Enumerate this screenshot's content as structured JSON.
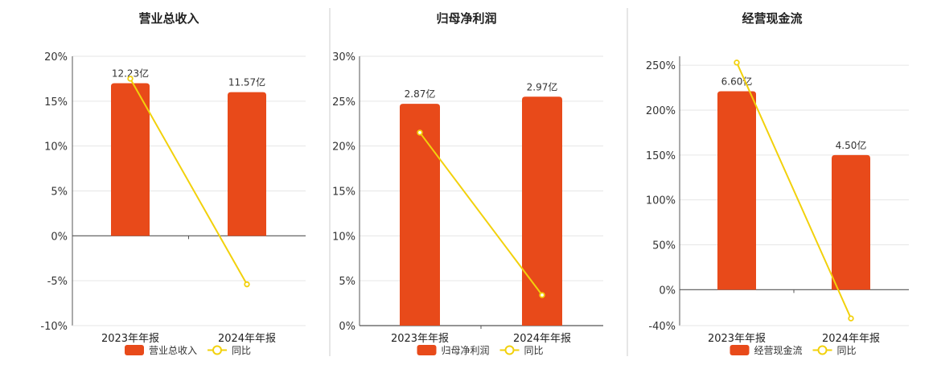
{
  "colors": {
    "bar": "#E84A1A",
    "line": "#F2D10C",
    "grid": "#e6e6e6",
    "axis": "#555555",
    "divider": "#cccccc"
  },
  "chart_data": [
    {
      "type": "bar",
      "title": "营业总收入",
      "categories": [
        "2023年年报",
        "2024年年报"
      ],
      "bar_labels": [
        "12.23亿",
        "11.57亿"
      ],
      "bar_values": [
        17,
        16
      ],
      "yoy_values": [
        17.5,
        -5.4
      ],
      "ylim": [
        -10,
        20
      ],
      "yticks": [
        "20%",
        "15%",
        "10%",
        "5%",
        "0%",
        "-5%",
        "-10%"
      ],
      "ytick_values": [
        20,
        15,
        10,
        5,
        0,
        -5,
        -10
      ],
      "legend": [
        "营业总收入",
        "同比"
      ],
      "legend_position": "bottom-center",
      "grid": true
    },
    {
      "type": "bar",
      "title": "归母净利润",
      "categories": [
        "2023年年报",
        "2024年年报"
      ],
      "bar_labels": [
        "2.87亿",
        "2.97亿"
      ],
      "bar_values": [
        24.7,
        25.5
      ],
      "yoy_values": [
        21.5,
        3.4
      ],
      "ylim": [
        0,
        30
      ],
      "yticks": [
        "30%",
        "25%",
        "20%",
        "15%",
        "10%",
        "5%",
        "0%"
      ],
      "ytick_values": [
        30,
        25,
        20,
        15,
        10,
        5,
        0
      ],
      "legend": [
        "归母净利润",
        "同比"
      ],
      "legend_position": "bottom-center",
      "grid": true
    },
    {
      "type": "bar",
      "title": "经营现金流",
      "categories": [
        "2023年年报",
        "2024年年报"
      ],
      "bar_labels": [
        "6.60亿",
        "4.50亿"
      ],
      "bar_values": [
        221,
        150
      ],
      "yoy_values": [
        253,
        -32
      ],
      "ylim": [
        -40,
        260
      ],
      "yticks": [
        "250%",
        "200%",
        "150%",
        "100%",
        "50%",
        "0%",
        "-40%"
      ],
      "ytick_values": [
        250,
        200,
        150,
        100,
        50,
        0,
        -40
      ],
      "legend": [
        "经营现金流",
        "同比"
      ],
      "legend_position": "bottom-center",
      "grid": true
    }
  ]
}
